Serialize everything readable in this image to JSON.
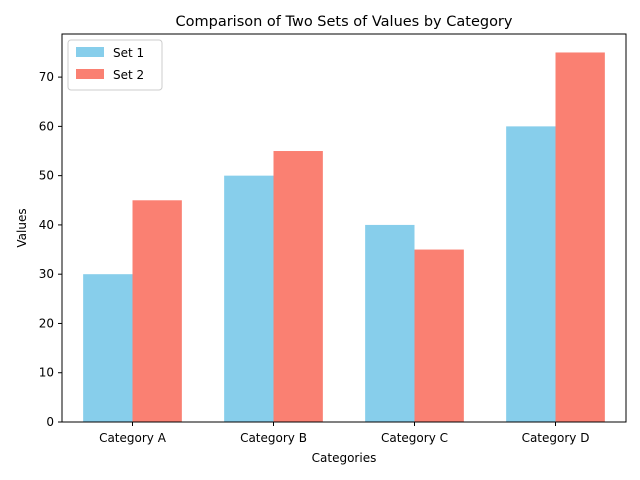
{
  "chart_data": {
    "type": "bar",
    "title": "Comparison of Two Sets of Values by Category",
    "xlabel": "Categories",
    "ylabel": "Values",
    "categories": [
      "Category A",
      "Category B",
      "Category C",
      "Category D"
    ],
    "series": [
      {
        "name": "Set 1",
        "values": [
          30,
          50,
          40,
          60
        ],
        "color": "#87ceeb"
      },
      {
        "name": "Set 2",
        "values": [
          45,
          55,
          35,
          75
        ],
        "color": "#fa8072"
      }
    ],
    "ylim": [
      0,
      78.75
    ],
    "yticks": [
      0,
      10,
      20,
      30,
      40,
      50,
      60,
      70
    ],
    "grid": false,
    "legend_position": "top-left"
  }
}
